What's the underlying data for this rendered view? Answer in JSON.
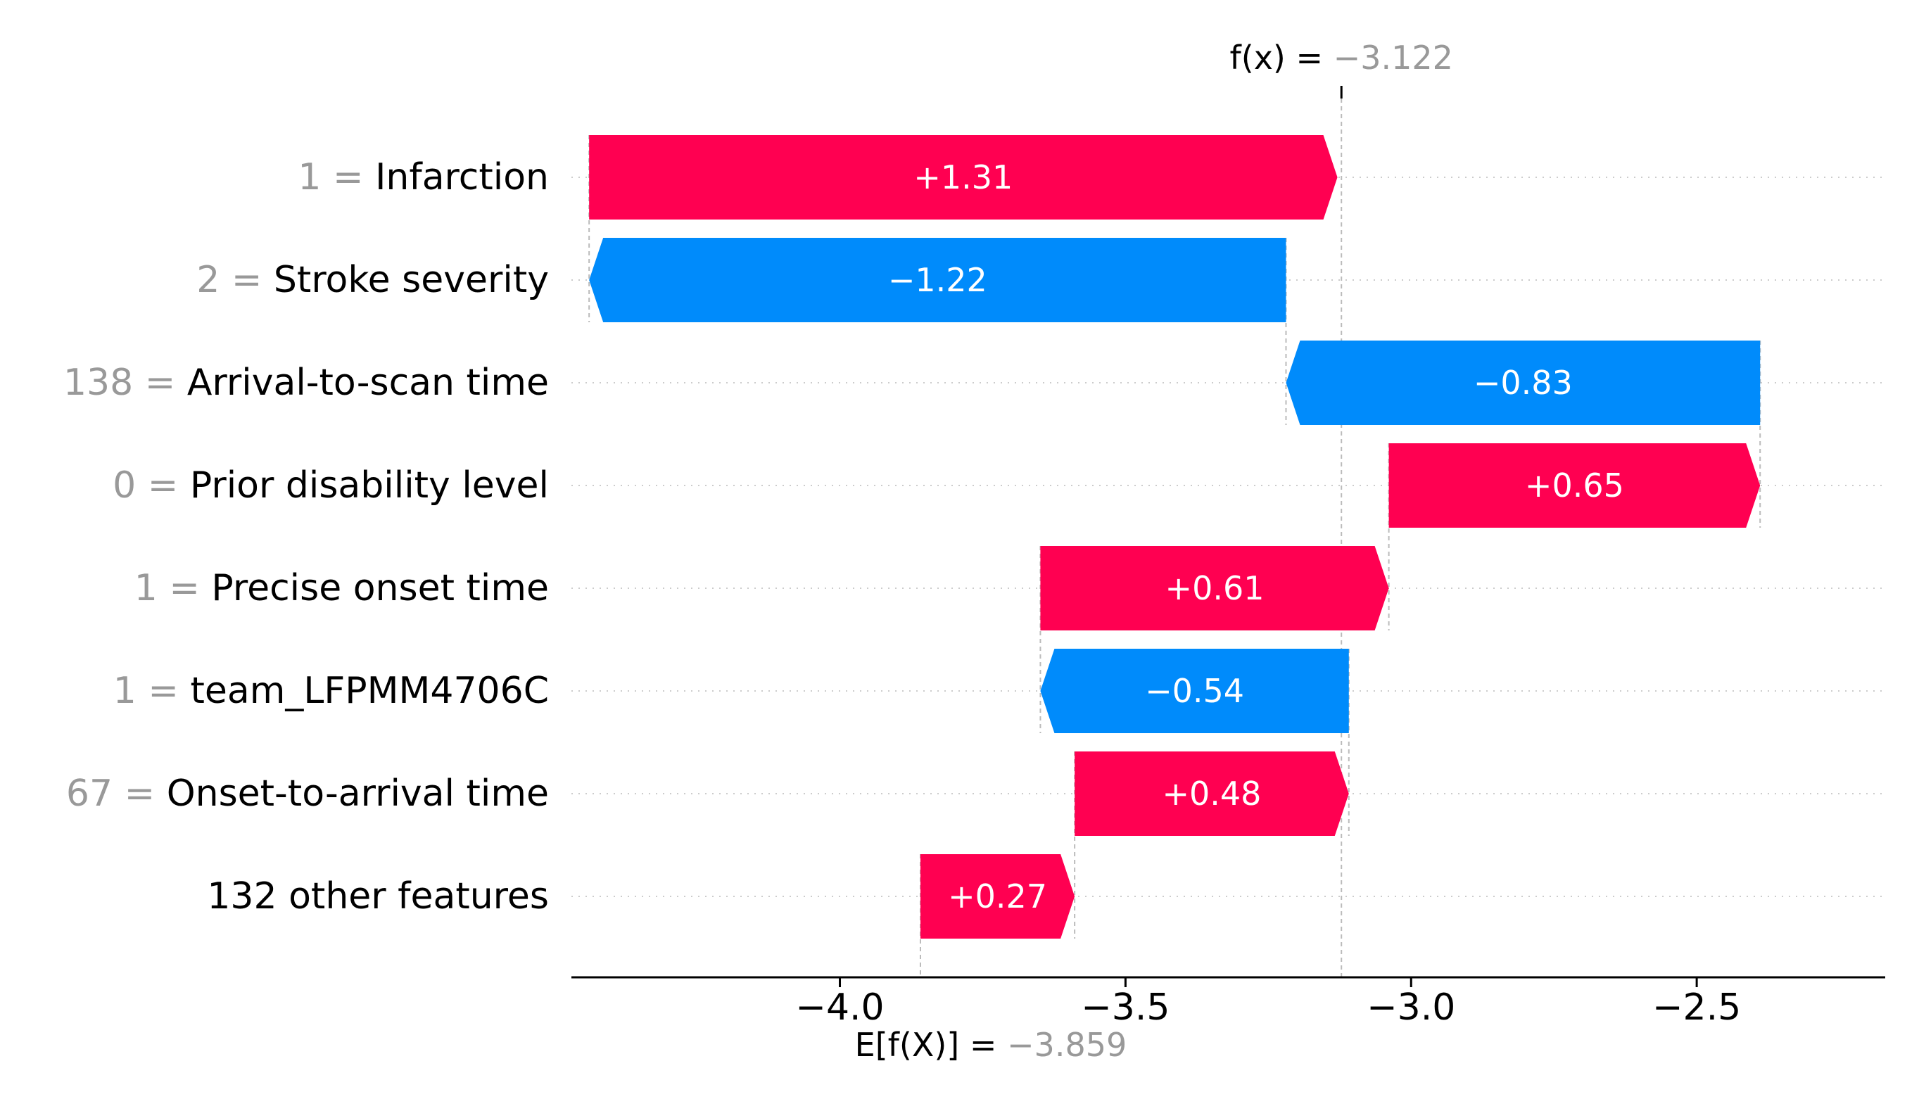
{
  "chart_data": {
    "type": "waterfall",
    "base_value": -3.859,
    "base_label_prefix": "E[f(X)] = ",
    "base_label_value": "−3.859",
    "output_value": -3.122,
    "output_label_prefix": "f(x) = ",
    "output_label_value": "−3.122",
    "xlim": [
      -4.47,
      -2.17
    ],
    "xticks": [
      -4.0,
      -3.5,
      -3.0,
      -2.5
    ],
    "xtick_labels": [
      "−4.0",
      "−3.5",
      "−3.0",
      "−2.5"
    ],
    "rows": [
      {
        "feature_value": "1",
        "feature": "Infarction",
        "shap": 1.31,
        "label": "+1.31"
      },
      {
        "feature_value": "2",
        "feature": "Stroke severity",
        "shap": -1.22,
        "label": "−1.22"
      },
      {
        "feature_value": "138",
        "feature": "Arrival-to-scan time",
        "shap": -0.83,
        "label": "−0.83"
      },
      {
        "feature_value": "0",
        "feature": "Prior disability level",
        "shap": 0.65,
        "label": "+0.65"
      },
      {
        "feature_value": "1",
        "feature": "Precise onset time",
        "shap": 0.61,
        "label": "+0.61"
      },
      {
        "feature_value": "1",
        "feature": "team_LFPMM4706C",
        "shap": -0.54,
        "label": "−0.54"
      },
      {
        "feature_value": "67",
        "feature": "Onset-to-arrival time",
        "shap": 0.48,
        "label": "+0.48"
      },
      {
        "feature_value": "",
        "feature": "132 other features",
        "shap": 0.27,
        "label": "+0.27"
      }
    ],
    "colors": {
      "positive": "#ff0051",
      "negative": "#008bfb",
      "feature_value_text": "#999999",
      "gridline": "#cccccc"
    }
  }
}
